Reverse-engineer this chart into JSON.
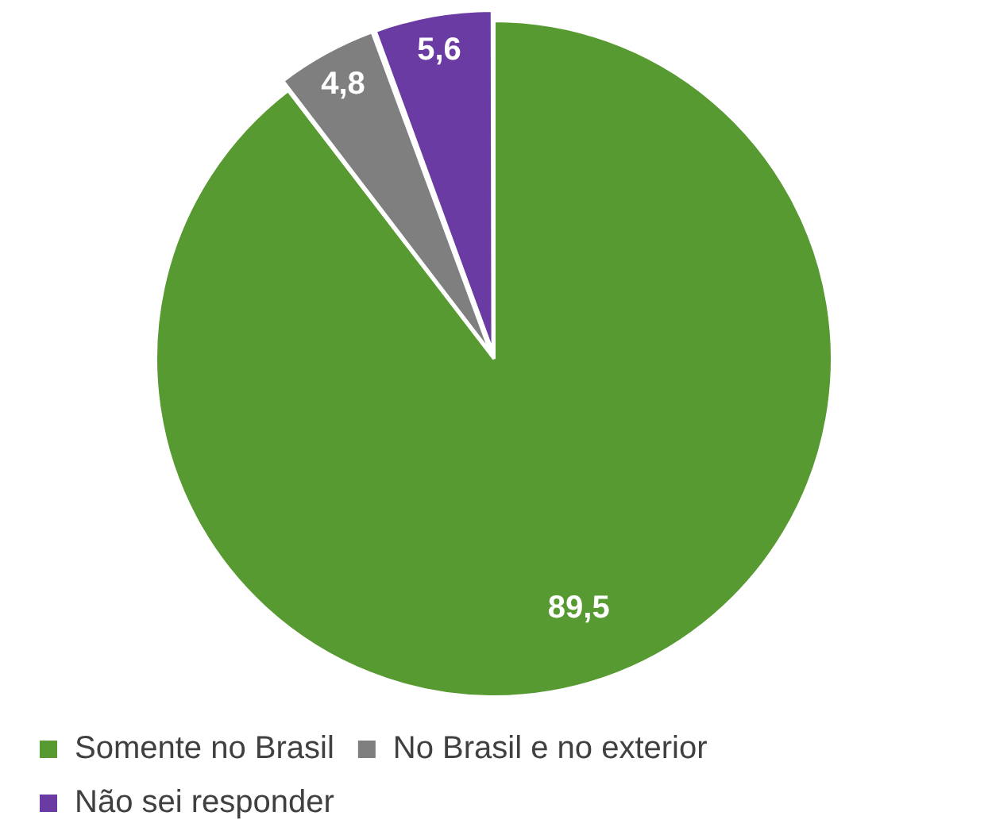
{
  "chart_data": {
    "type": "pie",
    "categories": [
      "Somente no Brasil",
      "No Brasil e no exterior",
      "Não sei responder"
    ],
    "values": [
      89.5,
      4.8,
      5.6
    ],
    "colors": [
      "#589a32",
      "#7f7f7f",
      "#6a3ba3"
    ],
    "value_labels": [
      "89,5",
      "4,8",
      "5,6"
    ],
    "legend": "bottom"
  }
}
